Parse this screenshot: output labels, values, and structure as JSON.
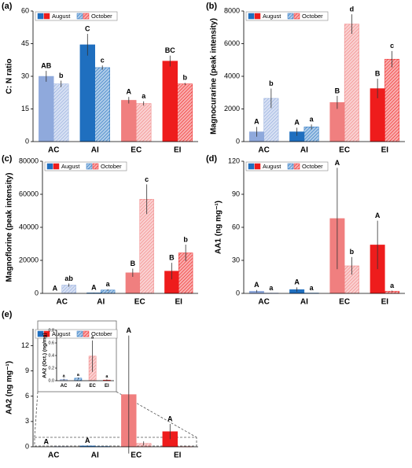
{
  "chart_data": [
    {
      "type": "bar",
      "panel": "(a)",
      "ylabel": "C: N ratio",
      "categories": [
        "AC",
        "AI",
        "EC",
        "EI"
      ],
      "category_colors": [
        "#8fa9dc",
        "#1f6fbf",
        "#f07f7f",
        "#ee1c1c"
      ],
      "legend": "top-left",
      "series": [
        {
          "name": "August",
          "values": [
            30,
            44.5,
            19,
            37
          ],
          "errors": [
            2.5,
            5,
            1.5,
            2.5
          ],
          "letters": [
            "AB",
            "C",
            "A",
            "BC"
          ]
        },
        {
          "name": "October",
          "hatched": true,
          "values": [
            26.5,
            34,
            17.5,
            26.5
          ],
          "errors": [
            1.5,
            1,
            1,
            0.5
          ],
          "letters": [
            "b",
            "c",
            "a",
            "b"
          ]
        }
      ],
      "ylim": [
        0,
        60
      ],
      "yticks": [
        0,
        15,
        30,
        45,
        60
      ]
    },
    {
      "type": "bar",
      "panel": "(b)",
      "ylabel": "Magnocurarine (peak intensity)",
      "categories": [
        "AC",
        "AI",
        "EC",
        "EI"
      ],
      "category_colors": [
        "#8fa9dc",
        "#1f6fbf",
        "#f07f7f",
        "#ee1c1c"
      ],
      "legend": "top-left",
      "series": [
        {
          "name": "August",
          "values": [
            600,
            600,
            2400,
            3250
          ],
          "errors": [
            300,
            250,
            400,
            600
          ],
          "letters": [
            "A",
            "A",
            "B",
            "B"
          ]
        },
        {
          "name": "October",
          "hatched": true,
          "values": [
            2650,
            900,
            7200,
            5050
          ],
          "errors": [
            600,
            150,
            600,
            500
          ],
          "letters": [
            "b",
            "a",
            "d",
            "c"
          ]
        }
      ],
      "ylim": [
        0,
        8000
      ],
      "yticks": [
        0,
        2000,
        4000,
        6000,
        8000
      ]
    },
    {
      "type": "bar",
      "panel": "(c)",
      "ylabel": "Magnoflorine (peak intensity)",
      "categories": [
        "AC",
        "AI",
        "EC",
        "EI"
      ],
      "category_colors": [
        "#8fa9dc",
        "#1f6fbf",
        "#f07f7f",
        "#ee1c1c"
      ],
      "legend": "top-left",
      "series": [
        {
          "name": "August",
          "values": [
            0,
            300,
            12500,
            13500
          ],
          "errors": [
            0,
            100,
            2500,
            5000
          ],
          "letters": [
            "A",
            "A",
            "B",
            "B"
          ]
        },
        {
          "name": "October",
          "hatched": true,
          "values": [
            5000,
            2000,
            57000,
            24500
          ],
          "errors": [
            1000,
            500,
            9000,
            5000
          ],
          "letters": [
            "ab",
            "a",
            "c",
            "b"
          ]
        }
      ],
      "ylim": [
        0,
        80000
      ],
      "yticks": [
        0,
        20000,
        40000,
        60000,
        80000
      ]
    },
    {
      "type": "bar",
      "panel": "(d)",
      "ylabel": "AA1 (ng mg⁻¹)",
      "categories": [
        "AC",
        "AI",
        "EC",
        "EI"
      ],
      "category_colors": [
        "#8fa9dc",
        "#1f6fbf",
        "#f07f7f",
        "#ee1c1c"
      ],
      "legend": "top-left",
      "series": [
        {
          "name": "August",
          "values": [
            2,
            3.5,
            68,
            44
          ],
          "errors": [
            1,
            2,
            46,
            22
          ],
          "letters": [
            "A",
            "A",
            "A",
            "A"
          ]
        },
        {
          "name": "October",
          "hatched": true,
          "values": [
            0.3,
            0.3,
            25,
            2
          ],
          "errors": [
            0.1,
            0.1,
            8,
            0.5
          ],
          "letters": [
            "a",
            "a",
            "b",
            "a"
          ]
        }
      ],
      "ylim": [
        0,
        120
      ],
      "yticks": [
        0,
        30,
        60,
        90,
        120
      ]
    },
    {
      "type": "bar",
      "panel": "(e)",
      "ylabel": "AA2 (ng mg⁻¹)",
      "categories": [
        "AC",
        "AI",
        "EC",
        "EI"
      ],
      "category_colors": [
        "#8fa9dc",
        "#1f6fbf",
        "#f07f7f",
        "#ee1c1c"
      ],
      "legend": "top-left",
      "series": [
        {
          "name": "August",
          "values": [
            0,
            0.1,
            6.2,
            1.8
          ],
          "errors": [
            0,
            0.05,
            7,
            0.9
          ],
          "letters": [
            "A",
            "A",
            "A",
            "A"
          ]
        },
        {
          "name": "October",
          "hatched": true,
          "values": [
            0.02,
            0.04,
            0.39,
            0.01
          ],
          "errors": [
            0.01,
            0.01,
            0.25,
            0.01
          ],
          "letters": [
            null,
            null,
            null,
            null
          ]
        }
      ],
      "ylim": [
        0,
        14
      ],
      "yticks": [
        0,
        3,
        6,
        9,
        12
      ]
    },
    {
      "type": "bar",
      "inset": true,
      "ylabel": "AA2 (Oct.) (ng/mg)",
      "categories": [
        "AC",
        "AI",
        "EC",
        "EI"
      ],
      "category_colors": [
        "#8fa9dc",
        "#1f6fbf",
        "#f07f7f",
        "#ee1c1c"
      ],
      "series": [
        {
          "hatched": true,
          "values": [
            0.02,
            0.04,
            0.39,
            0.01
          ],
          "errors": [
            0.01,
            0.01,
            0.25,
            0.01
          ],
          "letters": [
            "a",
            "a",
            "a",
            "a"
          ]
        }
      ],
      "ylim": [
        0,
        0.8
      ],
      "yticks": [
        {
          "value": 0,
          "label": "0.0"
        },
        0.2,
        0.4,
        0.6,
        0.8
      ]
    }
  ]
}
